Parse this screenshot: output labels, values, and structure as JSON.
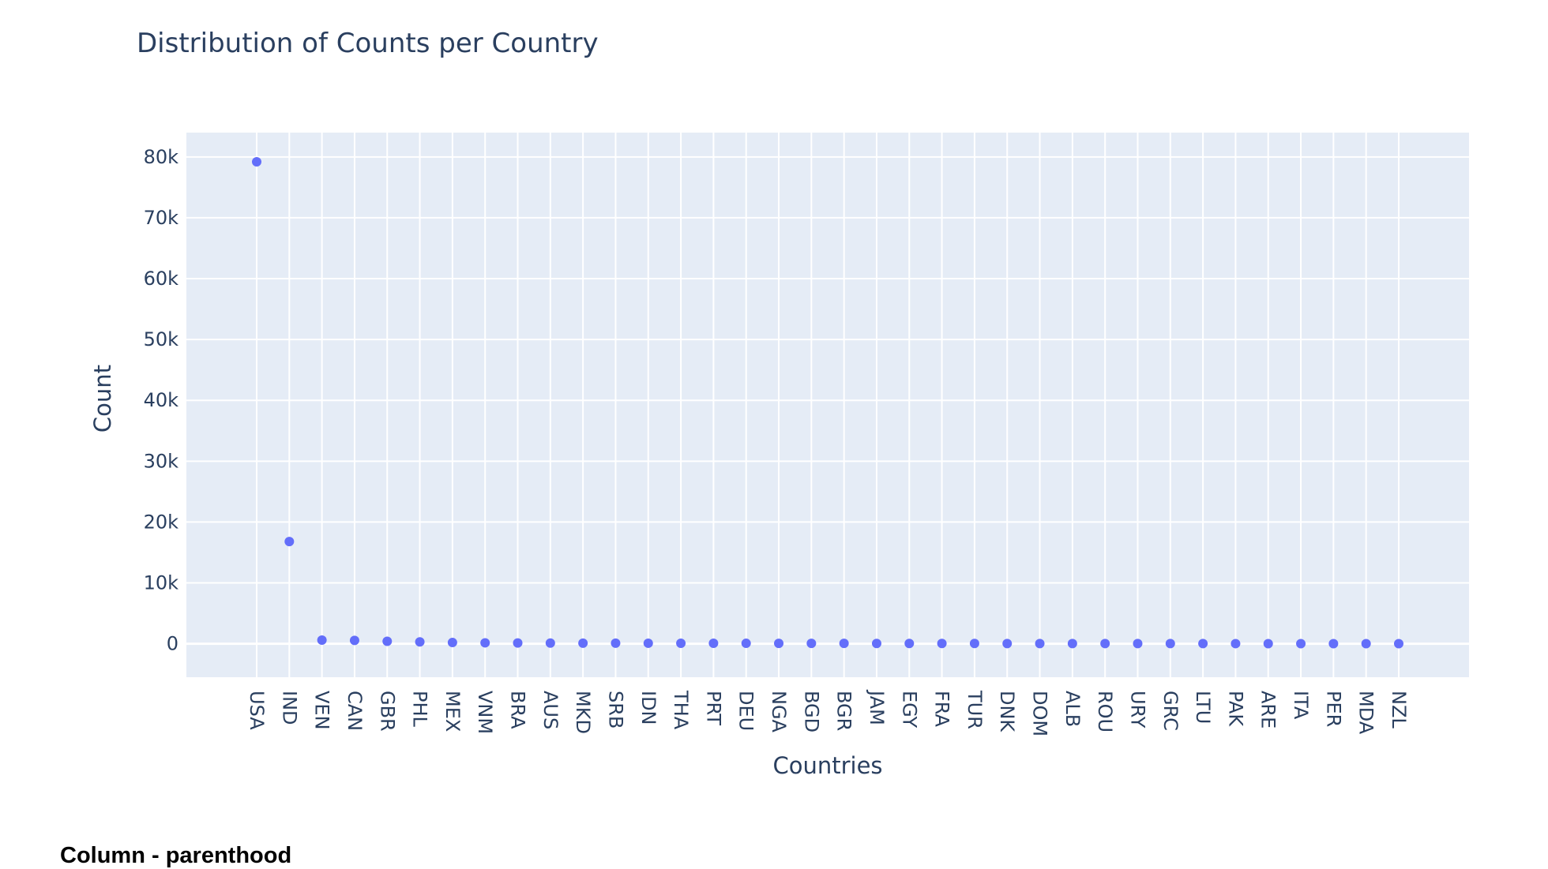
{
  "footer": {
    "heading": "Column - parenthood"
  },
  "chart_data": {
    "type": "scatter",
    "title": "Distribution of Counts per Country",
    "xlabel": "Countries",
    "ylabel": "Count",
    "ylim": [
      -5500,
      84000
    ],
    "yticks": [
      0,
      10000,
      20000,
      30000,
      40000,
      50000,
      60000,
      70000,
      80000
    ],
    "ytick_labels": [
      "0",
      "10k",
      "20k",
      "30k",
      "40k",
      "50k",
      "60k",
      "70k",
      "80k"
    ],
    "categories": [
      "USA",
      "IND",
      "VEN",
      "CAN",
      "GBR",
      "PHL",
      "MEX",
      "VNM",
      "BRA",
      "AUS",
      "MKD",
      "SRB",
      "IDN",
      "THA",
      "PRT",
      "DEU",
      "NGA",
      "BGD",
      "BGR",
      "JAM",
      "EGY",
      "FRA",
      "TUR",
      "DNK",
      "DOM",
      "ALB",
      "ROU",
      "URY",
      "GRC",
      "LTU",
      "PAK",
      "ARE",
      "ITA",
      "PER",
      "MDA",
      "NZL"
    ],
    "values": [
      79200,
      16800,
      600,
      550,
      400,
      300,
      200,
      150,
      120,
      110,
      100,
      90,
      85,
      80,
      75,
      70,
      65,
      60,
      55,
      50,
      45,
      40,
      38,
      35,
      32,
      30,
      28,
      26,
      24,
      22,
      20,
      18,
      16,
      14,
      12,
      10
    ],
    "marker_color": "#636efa",
    "plot_bgcolor": "#e5ecf6",
    "grid": true,
    "legend": "none"
  }
}
